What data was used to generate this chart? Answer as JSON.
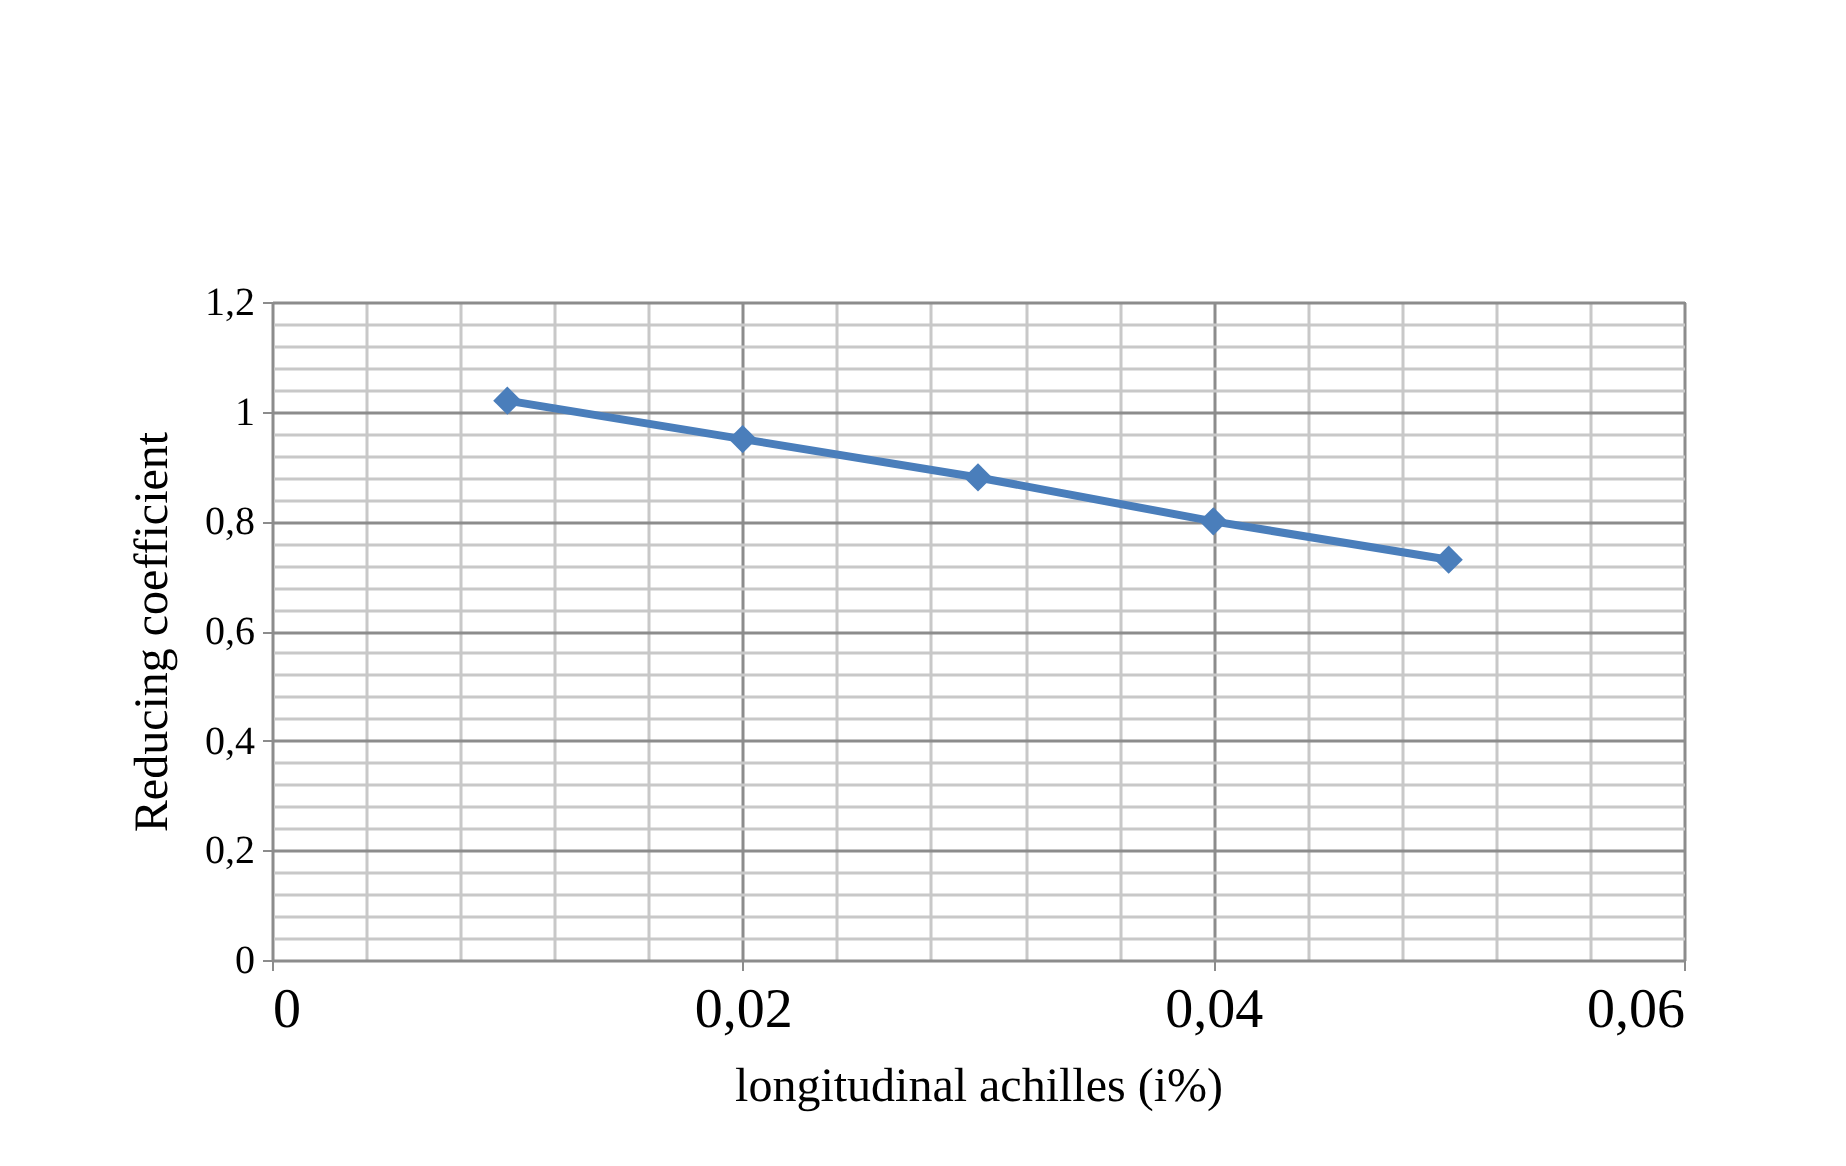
{
  "chart_data": {
    "type": "line",
    "xlabel": "longitudinal achilles (i%)",
    "ylabel": "Reducing coefficient",
    "x": [
      0.01,
      0.02,
      0.03,
      0.04,
      0.05
    ],
    "series": [
      {
        "color": "#4a7ebb",
        "values": [
          1.02,
          0.95,
          0.88,
          0.8,
          0.73
        ]
      }
    ],
    "xlim": [
      0,
      0.06
    ],
    "xticks": [
      0,
      {
        "value": 0.004,
        "label": null
      },
      {
        "value": 0.008,
        "label": null
      },
      {
        "value": 0.012,
        "label": null
      },
      {
        "value": 0.016,
        "label": null
      },
      {
        "value": 0.02,
        "label": "0,02"
      },
      {
        "value": 0.024,
        "label": null
      },
      {
        "value": 0.028,
        "label": null
      },
      {
        "value": 0.032,
        "label": null
      },
      {
        "value": 0.036,
        "label": null
      },
      {
        "value": 0.04,
        "label": "0,04"
      },
      {
        "value": 0.044,
        "label": null
      },
      {
        "value": 0.048,
        "label": null
      },
      {
        "value": 0.052,
        "label": null
      },
      {
        "value": 0.056,
        "label": null
      },
      {
        "value": 0.06,
        "label": "0,06"
      }
    ],
    "ylim": [
      0,
      1.2
    ],
    "yticks": [
      0,
      {
        "value": 0.04,
        "label": null
      },
      {
        "value": 0.08,
        "label": null
      },
      {
        "value": 0.12,
        "label": null
      },
      {
        "value": 0.16,
        "label": null
      },
      {
        "value": 0.2,
        "label": "0,2"
      },
      {
        "value": 0.24,
        "label": null
      },
      {
        "value": 0.28,
        "label": null
      },
      {
        "value": 0.32,
        "label": null
      },
      {
        "value": 0.36,
        "label": null
      },
      {
        "value": 0.4,
        "label": "0,4"
      },
      {
        "value": 0.44,
        "label": null
      },
      {
        "value": 0.48,
        "label": null
      },
      {
        "value": 0.52,
        "label": null
      },
      {
        "value": 0.56,
        "label": null
      },
      {
        "value": 0.6,
        "label": "0,6"
      },
      {
        "value": 0.64,
        "label": null
      },
      {
        "value": 0.68,
        "label": null
      },
      {
        "value": 0.72,
        "label": null
      },
      {
        "value": 0.76,
        "label": null
      },
      {
        "value": 0.8,
        "label": "0,8"
      },
      {
        "value": 0.84,
        "label": null
      },
      {
        "value": 0.88,
        "label": null
      },
      {
        "value": 0.92,
        "label": null
      },
      {
        "value": 0.96,
        "label": null
      },
      {
        "value": 1,
        "label": "1"
      },
      {
        "value": 1.04,
        "label": null
      },
      {
        "value": 1.08,
        "label": null
      },
      {
        "value": 1.12,
        "label": null
      },
      {
        "value": 1.16,
        "label": null
      },
      {
        "value": 1.2,
        "label": "1,2"
      }
    ],
    "grid": true,
    "marker": "diamond",
    "line_style": "solid"
  }
}
